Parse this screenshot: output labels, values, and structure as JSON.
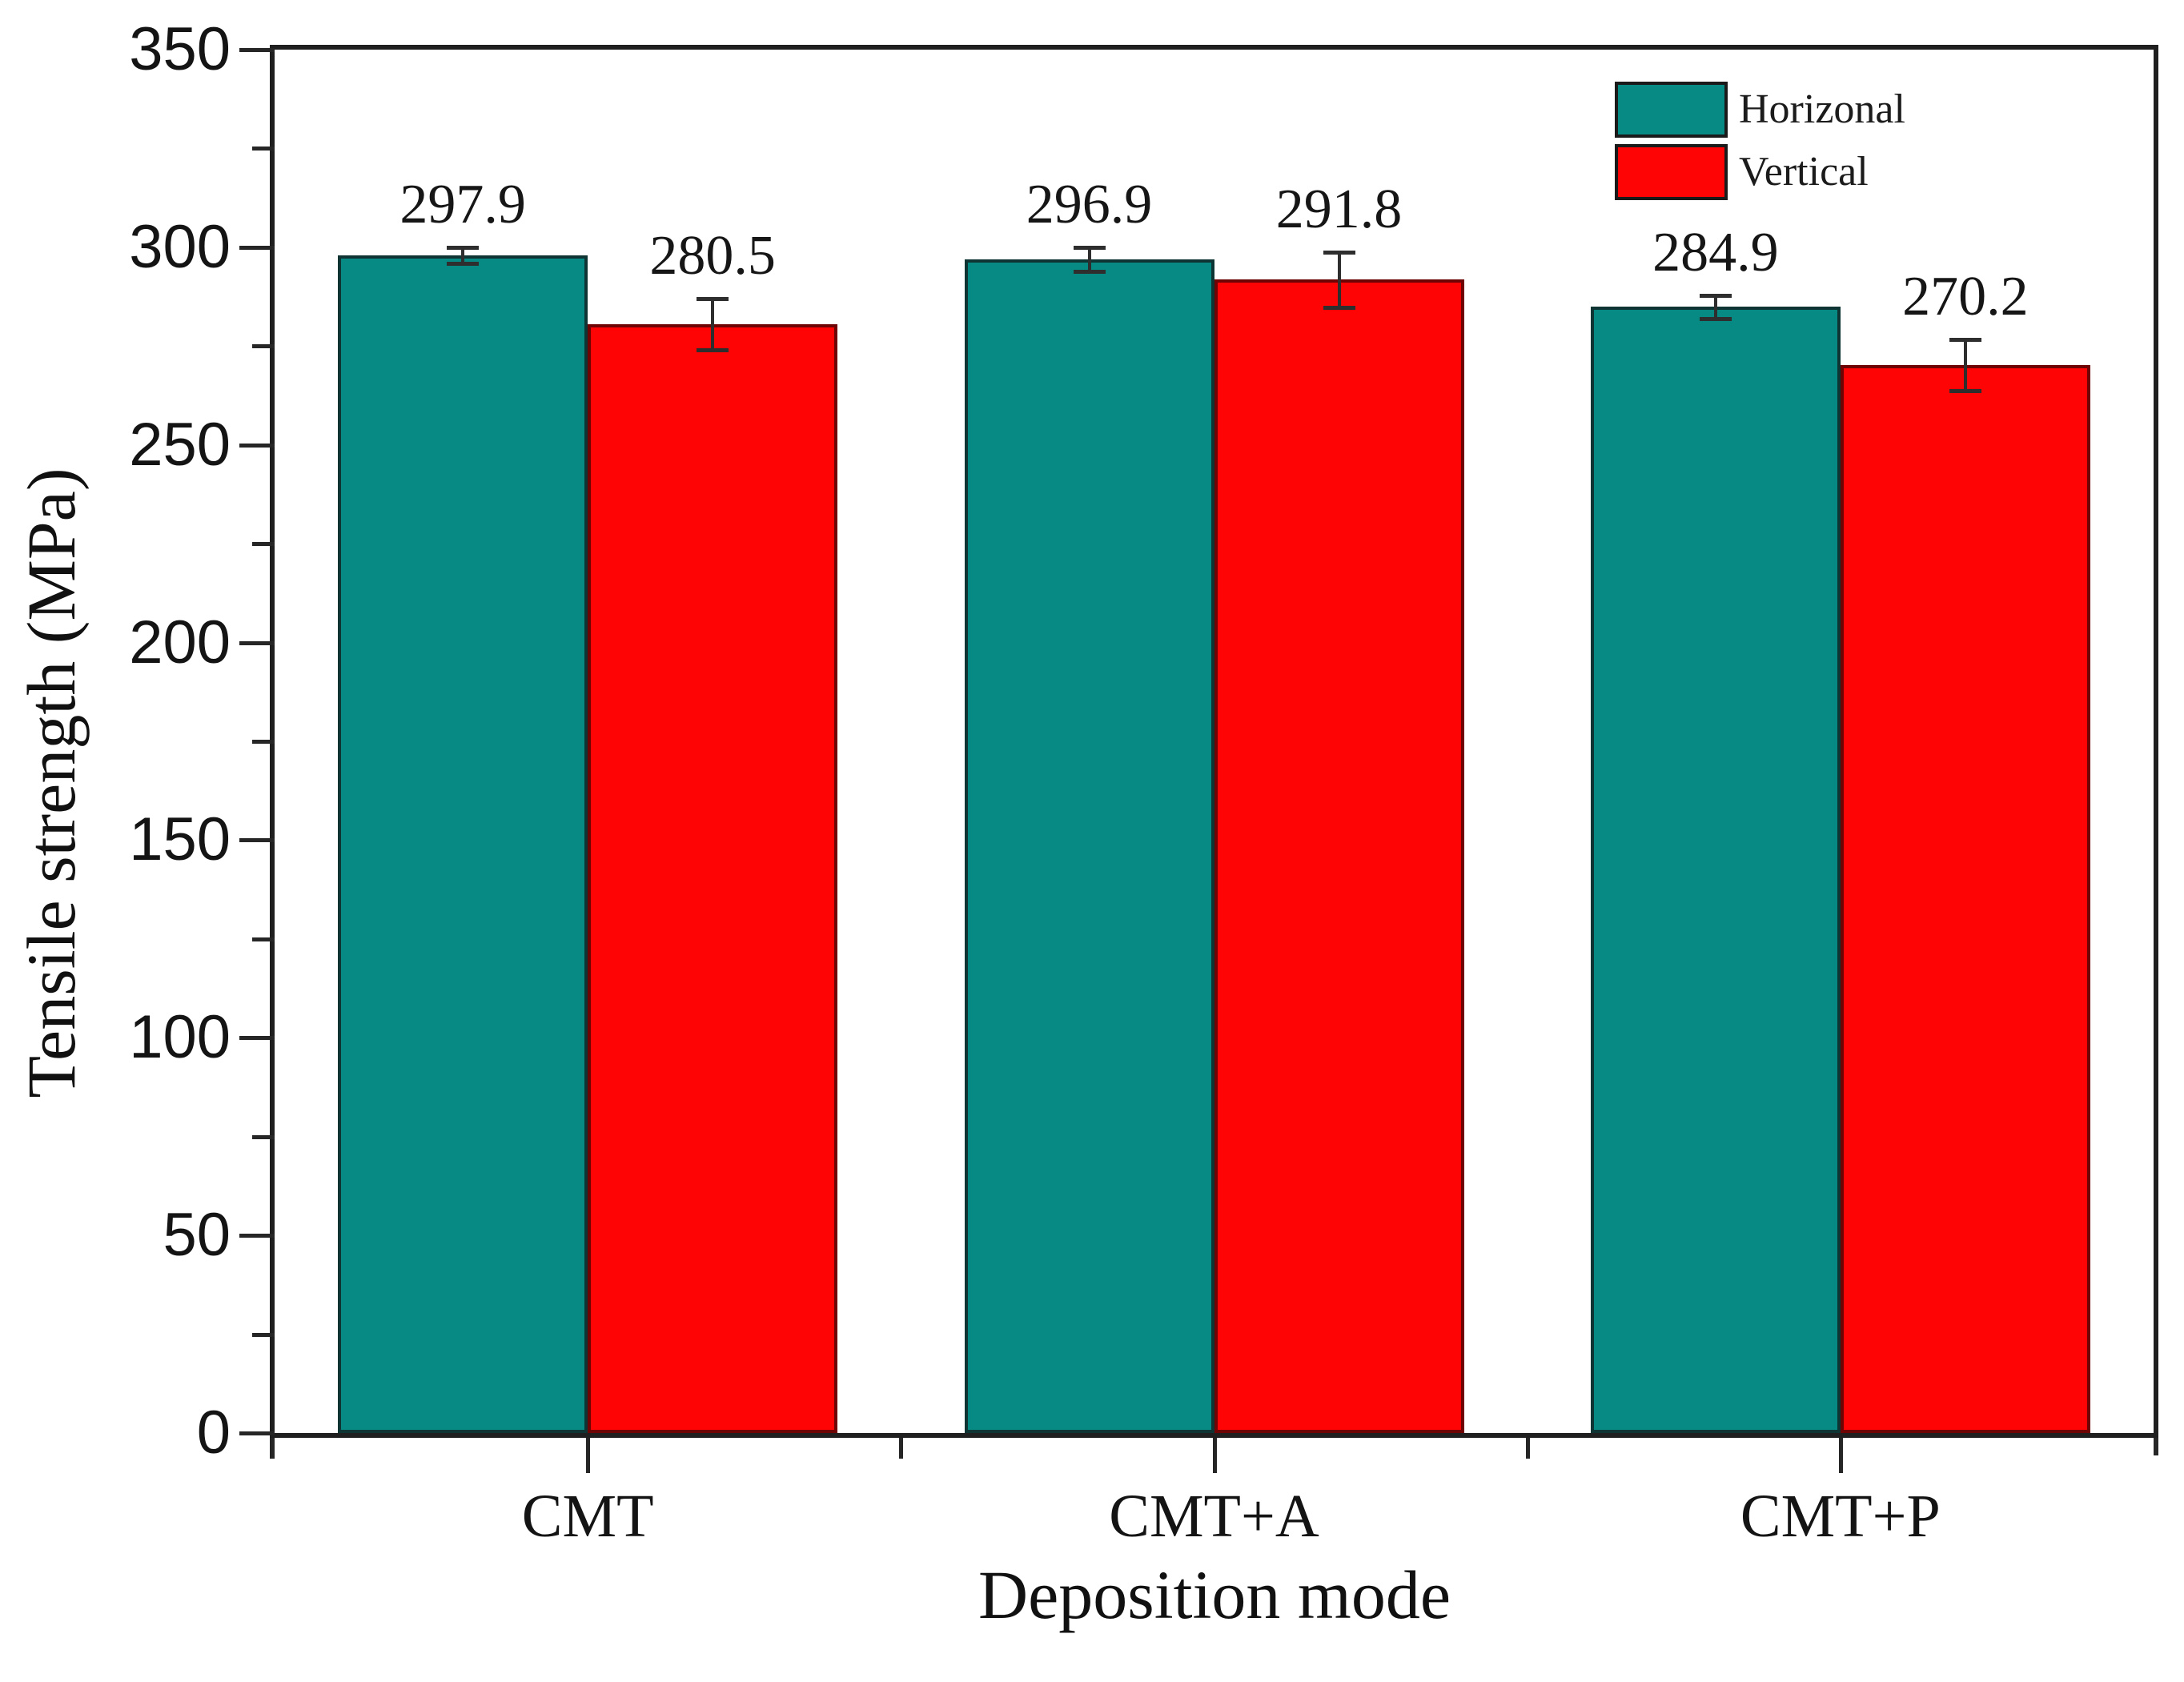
{
  "figure": {
    "background": "#ffffff"
  },
  "chart_data": {
    "type": "bar",
    "title": "",
    "xlabel": "Deposition mode",
    "ylabel": "Tensile strength (MPa)",
    "categories": [
      "CMT",
      "CMT+A",
      "CMT+P"
    ],
    "series": [
      {
        "name": "Horizonal",
        "color": "#088a84",
        "edge_color": "#0e3534",
        "values": [
          297.9,
          296.9,
          284.9
        ],
        "value_labels": [
          "297.9",
          "296.9",
          "284.9"
        ],
        "errors": [
          2.0,
          3.0,
          3.0
        ]
      },
      {
        "name": "Vertical",
        "color": "#fe0404",
        "edge_color": "#6e0404",
        "values": [
          280.5,
          291.8,
          270.2
        ],
        "value_labels": [
          "280.5",
          "291.8",
          "270.2"
        ],
        "errors": [
          6.5,
          7.0,
          6.5
        ]
      }
    ],
    "ylim": [
      0,
      350
    ],
    "y_major_step": 50,
    "y_minor_step": 25,
    "y_tick_labels": [
      "0",
      "50",
      "100",
      "150",
      "200",
      "250",
      "300",
      "350"
    ],
    "grid": false,
    "error_bars": true,
    "legend_position": "top-right",
    "legend_labels": [
      "Horizonal",
      "Vertical"
    ]
  }
}
